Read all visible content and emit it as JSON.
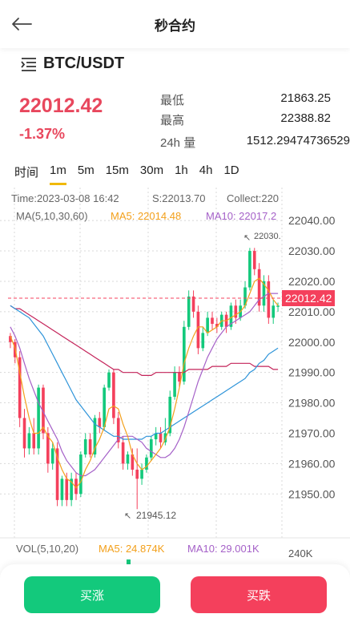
{
  "header": {
    "title": "秒合约",
    "back_icon": "arrow-left-icon"
  },
  "pair": {
    "name": "BTC/USDT",
    "menu_icon": "menu-icon"
  },
  "ticker": {
    "price": "22012.42",
    "change": "-1.37%"
  },
  "stats": [
    {
      "label": "最低",
      "value": "21863.25"
    },
    {
      "label": "最高",
      "value": "22388.82"
    },
    {
      "label": "24h 量",
      "value": "1512.29474736529"
    }
  ],
  "intervals": [
    {
      "label": "时间",
      "active": false
    },
    {
      "label": "1m",
      "active": true
    },
    {
      "label": "5m",
      "active": false
    },
    {
      "label": "15m",
      "active": false
    },
    {
      "label": "30m",
      "active": false
    },
    {
      "label": "1h",
      "active": false
    },
    {
      "label": "4h",
      "active": false
    },
    {
      "label": "1D",
      "active": false
    }
  ],
  "chart_info": {
    "time": "Time:2023-03-08 16:42",
    "s": "S:22013.70",
    "collect": "Collect:220",
    "ma_label": "MA(5,10,30,60)",
    "ma5": "MA5: 22014.48",
    "ma10": "MA10: 22017.2",
    "vol_label": "VOL(5,10,20)",
    "vol_ma5": "MA5: 24.874K",
    "vol_ma10": "MA10: 29.001K",
    "vol_axis": "240K",
    "high_annotation": "22030.",
    "low_annotation": "21945.12",
    "current_price_label": "22012.42"
  },
  "colors": {
    "up": "#13c97c",
    "down": "#f4405c",
    "ma5": "#f3a01b",
    "ma10": "#a561c8",
    "ma30": "#2e94d9",
    "ma60": "#c4245a"
  },
  "chart_data": {
    "type": "candlestick",
    "y_ticks": [
      "22040.00",
      "22030.00",
      "22020.00",
      "22010.00",
      "22000.00",
      "21990.00",
      "21980.00",
      "21970.00",
      "21960.00",
      "21950.00"
    ],
    "ylim": [
      21944,
      22044
    ],
    "candles": [
      [
        22002,
        22000,
        22003,
        21998
      ],
      [
        22000,
        21995,
        22001,
        21993
      ],
      [
        21995,
        21975,
        21997,
        21972
      ],
      [
        21975,
        21965,
        21978,
        21962
      ],
      [
        21965,
        21970,
        21972,
        21963
      ],
      [
        21970,
        21965,
        21975,
        21963
      ],
      [
        21965,
        21985,
        21986,
        21963
      ],
      [
        21985,
        21970,
        21986,
        21968
      ],
      [
        21970,
        21960,
        21972,
        21957
      ],
      [
        21960,
        21965,
        21967,
        21958
      ],
      [
        21965,
        21948,
        21967,
        21946
      ],
      [
        21948,
        21955,
        21956,
        21946
      ],
      [
        21955,
        21948,
        21957,
        21946
      ],
      [
        21948,
        21955,
        21957,
        21946
      ],
      [
        21955,
        21950,
        21957,
        21948
      ],
      [
        21950,
        21963,
        21964,
        21949
      ],
      [
        21963,
        21968,
        21970,
        21962
      ],
      [
        21968,
        21963,
        21970,
        21962
      ],
      [
        21963,
        21975,
        21976,
        21962
      ],
      [
        21975,
        21972,
        21977,
        21970
      ],
      [
        21972,
        21985,
        21986,
        21971
      ],
      [
        21985,
        21990,
        21991,
        21984
      ],
      [
        21990,
        21975,
        21991,
        21973
      ],
      [
        21975,
        21967,
        21977,
        21965
      ],
      [
        21967,
        21960,
        21969,
        21958
      ],
      [
        21960,
        21963,
        21964,
        21958
      ],
      [
        21963,
        21958,
        21965,
        21956
      ],
      [
        21958,
        21955,
        21965,
        21945
      ],
      [
        21955,
        21958,
        21960,
        21953
      ],
      [
        21958,
        21962,
        21963,
        21957
      ],
      [
        21962,
        21968,
        21969,
        21961
      ],
      [
        21968,
        21970,
        21972,
        21966
      ],
      [
        21970,
        21967,
        21972,
        21965
      ],
      [
        21967,
        21970,
        21975,
        21966
      ],
      [
        21970,
        21982,
        21984,
        21969
      ],
      [
        21982,
        21990,
        21992,
        21981
      ],
      [
        21990,
        21987,
        21992,
        21985
      ],
      [
        21987,
        22005,
        22007,
        21986
      ],
      [
        22005,
        22015,
        22017,
        22004
      ],
      [
        22015,
        22010,
        22017,
        22008
      ],
      [
        22010,
        21998,
        22012,
        21996
      ],
      [
        21998,
        22003,
        22005,
        21997
      ],
      [
        22003,
        22008,
        22010,
        22002
      ],
      [
        22008,
        22006,
        22010,
        22004
      ],
      [
        22006,
        22005,
        22008,
        22003
      ],
      [
        22005,
        22009,
        22010,
        22004
      ],
      [
        22009,
        22005,
        22010,
        22003
      ],
      [
        22005,
        22012,
        22013,
        22004
      ],
      [
        22012,
        22008,
        22014,
        22006
      ],
      [
        22008,
        22012,
        22014,
        22007
      ],
      [
        22012,
        22018,
        22020,
        22011
      ],
      [
        22018,
        22030,
        22031,
        22017
      ],
      [
        22030,
        22024,
        22031,
        22022
      ],
      [
        22024,
        22012,
        22026,
        22010
      ],
      [
        22012,
        22020,
        22022,
        22010
      ],
      [
        22020,
        22008,
        22022,
        22006
      ],
      [
        22008,
        22012,
        22014,
        22006
      ],
      [
        22012,
        22012,
        22013,
        22010
      ]
    ],
    "ma5": [
      22002,
      21998,
      21990,
      21982,
      21975,
      21970,
      21970,
      21972,
      21969,
      21967,
      21962,
      21958,
      21955,
      21954,
      21952,
      21954,
      21958,
      21961,
      21965,
      21968,
      21972,
      21978,
      21979,
      21978,
      21973,
      21969,
      21963,
      21960,
      21958,
      21959,
      21961,
      21963,
      21965,
      21968,
      21972,
      21978,
      21985,
      21993,
      21998,
      22002,
      22005,
      22005,
      22003,
      22004,
      22005,
      22007,
      22007,
      22008,
      22009,
      22010,
      22012,
      22016,
      22020,
      22021,
      22019,
      22017,
      22014,
      22012
    ],
    "ma10": [
      22005,
      22002,
      21998,
      21993,
      21988,
      21984,
      21980,
      21977,
      21974,
      21971,
      21968,
      21964,
      21961,
      21959,
      21957,
      21956,
      21956,
      21957,
      21958,
      21960,
      21962,
      21964,
      21966,
      21968,
      21969,
      21969,
      21969,
      21968,
      21967,
      21965,
      21964,
      21963,
      21962,
      21962,
      21963,
      21965,
      21968,
      21972,
      21977,
      21982,
      21987,
      21991,
      21995,
      21998,
      22001,
      22003,
      22005,
      22006,
      22007,
      22008,
      22009,
      22010,
      22012,
      22014,
      22015,
      22016,
      22016,
      22016
    ],
    "ma30": [
      22012,
      22011,
      22010,
      22009,
      22008,
      22006,
      22004,
      22002,
      21999,
      21996,
      21993,
      21990,
      21987,
      21984,
      21981,
      21979,
      21977,
      21975,
      21973,
      21972,
      21971,
      21970,
      21969,
      21969,
      21968,
      21968,
      21968,
      21968,
      21968,
      21969,
      21969,
      21970,
      21970,
      21971,
      21972,
      21973,
      21974,
      21975,
      21976,
      21977,
      21978,
      21979,
      21980,
      21981,
      21982,
      21983,
      21984,
      21985,
      21986,
      21987,
      21988,
      21990,
      21991,
      21993,
      21994,
      21996,
      21997,
      21998
    ],
    "ma60": [
      22012,
      22011,
      22011,
      22010,
      22009,
      22008,
      22007,
      22006,
      22005,
      22004,
      22003,
      22002,
      22001,
      22000,
      21999,
      21998,
      21997,
      21996,
      21995,
      21994,
      21993,
      21992,
      21991,
      21991,
      21990,
      21990,
      21990,
      21990,
      21989,
      21989,
      21989,
      21990,
      21990,
      21990,
      21990,
      21990,
      21990,
      21990,
      21991,
      21991,
      21991,
      21991,
      21991,
      21992,
      21992,
      21992,
      21992,
      21993,
      21993,
      21993,
      21993,
      21993,
      21992,
      21992,
      21992,
      21992,
      21991,
      21991
    ]
  },
  "actions": {
    "buy": "买涨",
    "sell": "买跌"
  }
}
